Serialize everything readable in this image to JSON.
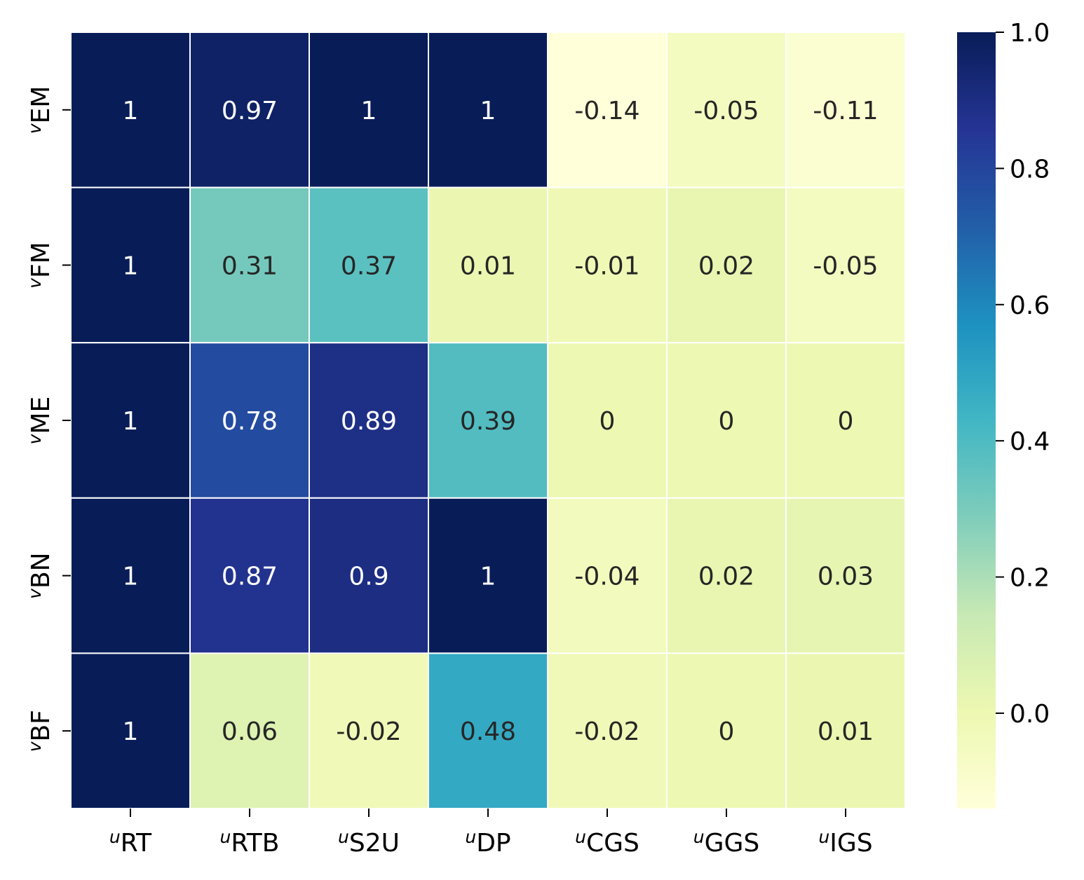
{
  "chart_data": {
    "type": "heatmap",
    "title": "",
    "xlabel": "",
    "ylabel": "",
    "x_labels": [
      {
        "prefix": "u",
        "name": "RT"
      },
      {
        "prefix": "u",
        "name": "RTB"
      },
      {
        "prefix": "u",
        "name": "S2U"
      },
      {
        "prefix": "u",
        "name": "DP"
      },
      {
        "prefix": "u",
        "name": "CGS"
      },
      {
        "prefix": "u",
        "name": "GGS"
      },
      {
        "prefix": "u",
        "name": "IGS"
      }
    ],
    "y_labels": [
      {
        "prefix": "v",
        "name": "EM"
      },
      {
        "prefix": "v",
        "name": "FM"
      },
      {
        "prefix": "v",
        "name": "ME"
      },
      {
        "prefix": "v",
        "name": "BN"
      },
      {
        "prefix": "v",
        "name": "BF"
      }
    ],
    "values": [
      [
        1,
        0.97,
        1,
        1,
        -0.14,
        -0.05,
        -0.11
      ],
      [
        1,
        0.31,
        0.37,
        0.01,
        -0.01,
        0.02,
        -0.05
      ],
      [
        1,
        0.78,
        0.89,
        0.39,
        0,
        0,
        0
      ],
      [
        1,
        0.87,
        0.9,
        1,
        -0.04,
        0.02,
        0.03
      ],
      [
        1,
        0.06,
        -0.02,
        0.48,
        -0.02,
        0,
        0.01
      ]
    ],
    "annotations": [
      [
        "1",
        "0.97",
        "1",
        "1",
        "-0.14",
        "-0.05",
        "-0.11"
      ],
      [
        "1",
        "0.31",
        "0.37",
        "0.01",
        "-0.01",
        "0.02",
        "-0.05"
      ],
      [
        "1",
        "0.78",
        "0.89",
        "0.39",
        "0",
        "0",
        "0"
      ],
      [
        "1",
        "0.87",
        "0.9",
        "1",
        "-0.04",
        "0.02",
        "0.03"
      ],
      [
        "1",
        "0.06",
        "-0.02",
        "0.48",
        "-0.02",
        "0",
        "0.01"
      ]
    ],
    "colormap": "YlGnBu",
    "vmin": -0.14,
    "vmax": 1.0,
    "colorbar_ticks": [
      {
        "value": 0.0,
        "label": "0.0"
      },
      {
        "value": 0.2,
        "label": "0.2"
      },
      {
        "value": 0.4,
        "label": "0.4"
      },
      {
        "value": 0.6,
        "label": "0.6"
      },
      {
        "value": 0.8,
        "label": "0.8"
      },
      {
        "value": 1.0,
        "label": "1.0"
      }
    ],
    "colormap_stops": [
      "#ffffd9",
      "#edf8b1",
      "#c7e9b4",
      "#7fcdbb",
      "#41b6c4",
      "#1d91c0",
      "#225ea8",
      "#253494",
      "#081d58"
    ],
    "grid": false,
    "legend": "right"
  }
}
